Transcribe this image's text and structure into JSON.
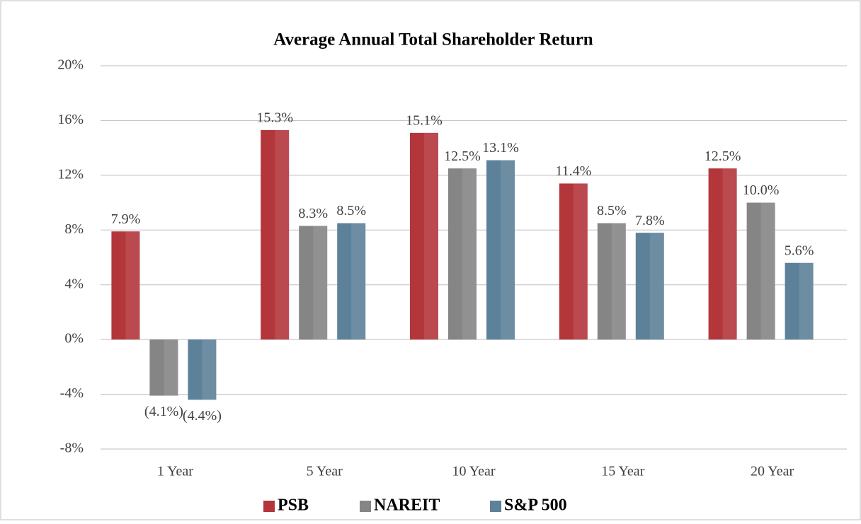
{
  "chart_data": {
    "type": "bar",
    "title": "Average Annual Total Shareholder Return",
    "categories": [
      "1 Year",
      "5 Year",
      "10 Year",
      "15 Year",
      "20 Year"
    ],
    "series": [
      {
        "name": "PSB",
        "color": "#b3363b",
        "values": [
          7.9,
          15.3,
          15.1,
          11.4,
          12.5
        ],
        "value_labels": [
          "7.9%",
          "15.3%",
          "15.1%",
          "11.4%",
          "12.5%"
        ]
      },
      {
        "name": "NAREIT",
        "color": "#858585",
        "values": [
          -4.1,
          8.3,
          12.5,
          8.5,
          10.0
        ],
        "value_labels": [
          "(4.1%)",
          "8.3%",
          "12.5%",
          "8.5%",
          "10.0%"
        ]
      },
      {
        "name": "S&P 500",
        "color": "#5d8199",
        "values": [
          -4.4,
          8.5,
          13.1,
          7.8,
          5.6
        ],
        "value_labels": [
          "(4.4%)",
          "8.5%",
          "13.1%",
          "7.8%",
          "5.6%"
        ]
      }
    ],
    "ylim": [
      -8,
      20
    ],
    "yticks": [
      {
        "value": -8,
        "label": "-8%"
      },
      {
        "value": -4,
        "label": "-4%"
      },
      {
        "value": 0,
        "label": "0%"
      },
      {
        "value": 4,
        "label": "4%"
      },
      {
        "value": 8,
        "label": "8%"
      },
      {
        "value": 12,
        "label": "12%"
      },
      {
        "value": 16,
        "label": "16%"
      },
      {
        "value": 20,
        "label": "20%"
      }
    ],
    "grid": true,
    "legend": "bottom"
  }
}
